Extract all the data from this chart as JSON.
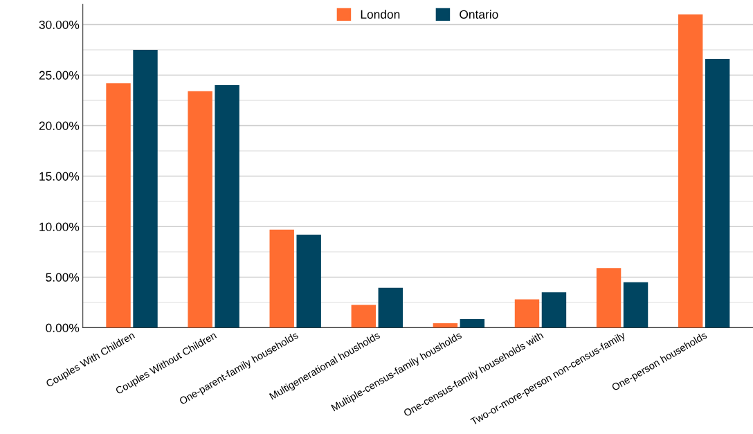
{
  "chart_data": {
    "type": "bar",
    "categories": [
      "Couples With Children",
      "Couples Without Children",
      "One-parent-family households",
      "Multigenerational housholds",
      "Multiple-census-family housholds",
      "One-census-family households with",
      "Two-or-more-person non-census-family",
      "One-person households"
    ],
    "series": [
      {
        "name": "London",
        "color": "#ff6d31",
        "values": [
          24.2,
          23.4,
          9.7,
          2.25,
          0.43,
          2.8,
          5.9,
          31.0
        ]
      },
      {
        "name": "Ontario",
        "color": "#004561",
        "values": [
          27.5,
          24.0,
          9.2,
          3.95,
          0.84,
          3.5,
          4.5,
          26.6
        ]
      }
    ],
    "ylim": [
      0,
      32
    ],
    "yticks": [
      {
        "value": 0,
        "label": "0.00%"
      },
      {
        "value": 2.5,
        "label": null
      },
      {
        "value": 5,
        "label": "5.00%"
      },
      {
        "value": 7.5,
        "label": null
      },
      {
        "value": 10,
        "label": "10.00%"
      },
      {
        "value": 12.5,
        "label": null
      },
      {
        "value": 15,
        "label": "15.00%"
      },
      {
        "value": 17.5,
        "label": null
      },
      {
        "value": 20,
        "label": "20.00%"
      },
      {
        "value": 22.5,
        "label": null
      },
      {
        "value": 25,
        "label": "25.00%"
      },
      {
        "value": 27.5,
        "label": null
      },
      {
        "value": 30,
        "label": "30.00%"
      }
    ],
    "grid": "y",
    "legend": "top"
  }
}
